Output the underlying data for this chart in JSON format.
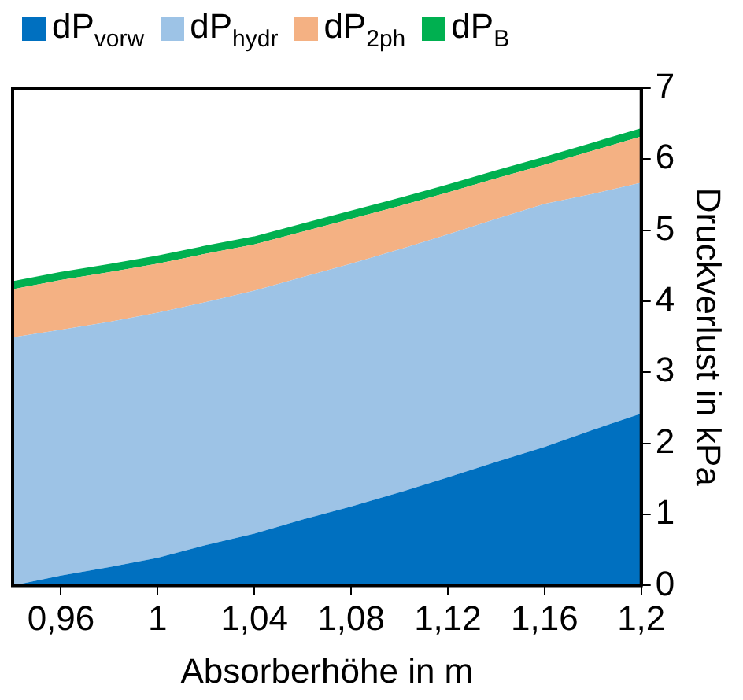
{
  "chart_data": {
    "type": "area",
    "stacked": true,
    "xlabel": "Absorberhöhe in m",
    "ylabel": "Druckverlust in kPa",
    "legend": "top left",
    "grid": false,
    "x": [
      0.94,
      0.96,
      0.98,
      1,
      1.02,
      1.04,
      1.06,
      1.08,
      1.1,
      1.12,
      1.14,
      1.16,
      1.18,
      1.2
    ],
    "xlim": [
      0.94,
      1.2
    ],
    "xticks": [
      {
        "value": 0.96,
        "label": "0,96"
      },
      1,
      {
        "value": 1.04,
        "label": "1,04"
      },
      {
        "value": 1.08,
        "label": "1,08"
      },
      {
        "value": 1.12,
        "label": "1,12"
      },
      {
        "value": 1.16,
        "label": "1,16"
      },
      {
        "value": 1.2,
        "label": "1,2"
      }
    ],
    "ylim": [
      0,
      7
    ],
    "yticks": [
      0,
      1,
      2,
      3,
      4,
      5,
      6,
      7
    ],
    "series": [
      {
        "name": "dP$_{vorw}$",
        "color": "#0070c0",
        "values": [
          0,
          0.14,
          0.26,
          0.39,
          0.57,
          0.73,
          0.93,
          1.11,
          1.31,
          1.52,
          1.74,
          1.95,
          2.19,
          2.42
        ]
      },
      {
        "name": "dP$_{hydr}$",
        "color": "#9dc3e6",
        "values": [
          3.49,
          3.46,
          3.45,
          3.45,
          3.42,
          3.42,
          3.41,
          3.42,
          3.42,
          3.42,
          3.42,
          3.42,
          3.32,
          3.25
        ]
      },
      {
        "name": "dP$_{2ph}$",
        "color": "#f4b183",
        "values": [
          0.68,
          0.7,
          0.7,
          0.69,
          0.68,
          0.65,
          0.64,
          0.63,
          0.61,
          0.59,
          0.57,
          0.55,
          0.61,
          0.65
        ]
      },
      {
        "name": "dP$_{B}$",
        "color": "#00b050",
        "values": [
          0.08,
          0.08,
          0.08,
          0.08,
          0.08,
          0.08,
          0.08,
          0.08,
          0.08,
          0.08,
          0.08,
          0.08,
          0.08,
          0.08
        ]
      }
    ]
  }
}
